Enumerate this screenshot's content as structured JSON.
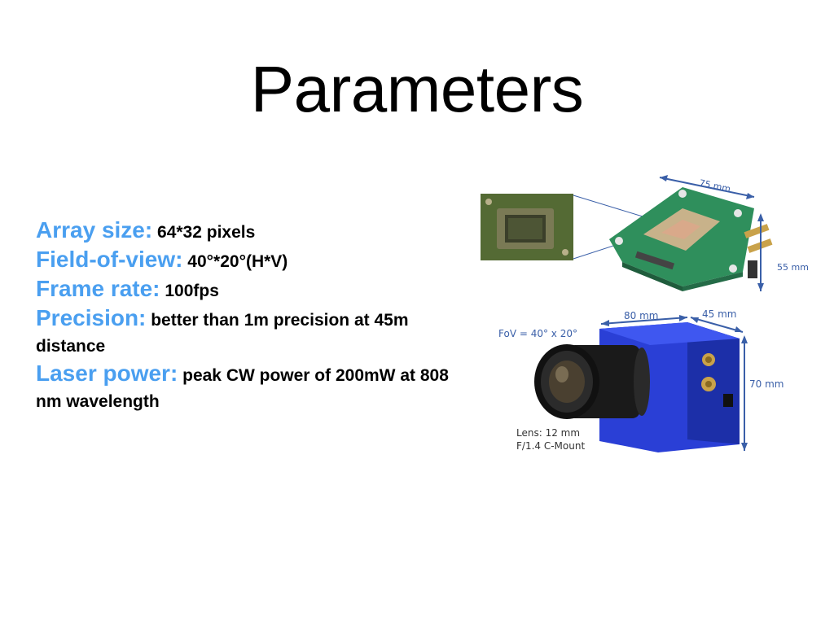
{
  "title": "Parameters",
  "params": [
    {
      "key": "Array size:",
      "value": " 64*32 pixels"
    },
    {
      "key": "Field-of-view:",
      "value": "  40°*20°(H*V)"
    },
    {
      "key": "Frame rate:",
      "value": " 100fps"
    },
    {
      "key": "Precision:",
      "value": " better than 1m precision at 45m distance"
    },
    {
      "key": "Laser power:",
      "value": " peak CW power of 200mW at 808 nm wavelength"
    }
  ],
  "board_figure": {
    "width_label": "75 mm",
    "depth_label": "55 mm"
  },
  "camera_figure": {
    "fov_label": "FoV = 40° x 20°",
    "width_label": "80 mm",
    "depth_label": "45 mm",
    "height_label": "70 mm",
    "lens_line1": "Lens: 12 mm",
    "lens_line2": "F/1.4 C-Mount"
  },
  "colors": {
    "accent": "#4a9ff0",
    "camera_body": "#2a3fd6",
    "pcb": "#2f8f5c",
    "dimension": "#3a5fa8"
  }
}
